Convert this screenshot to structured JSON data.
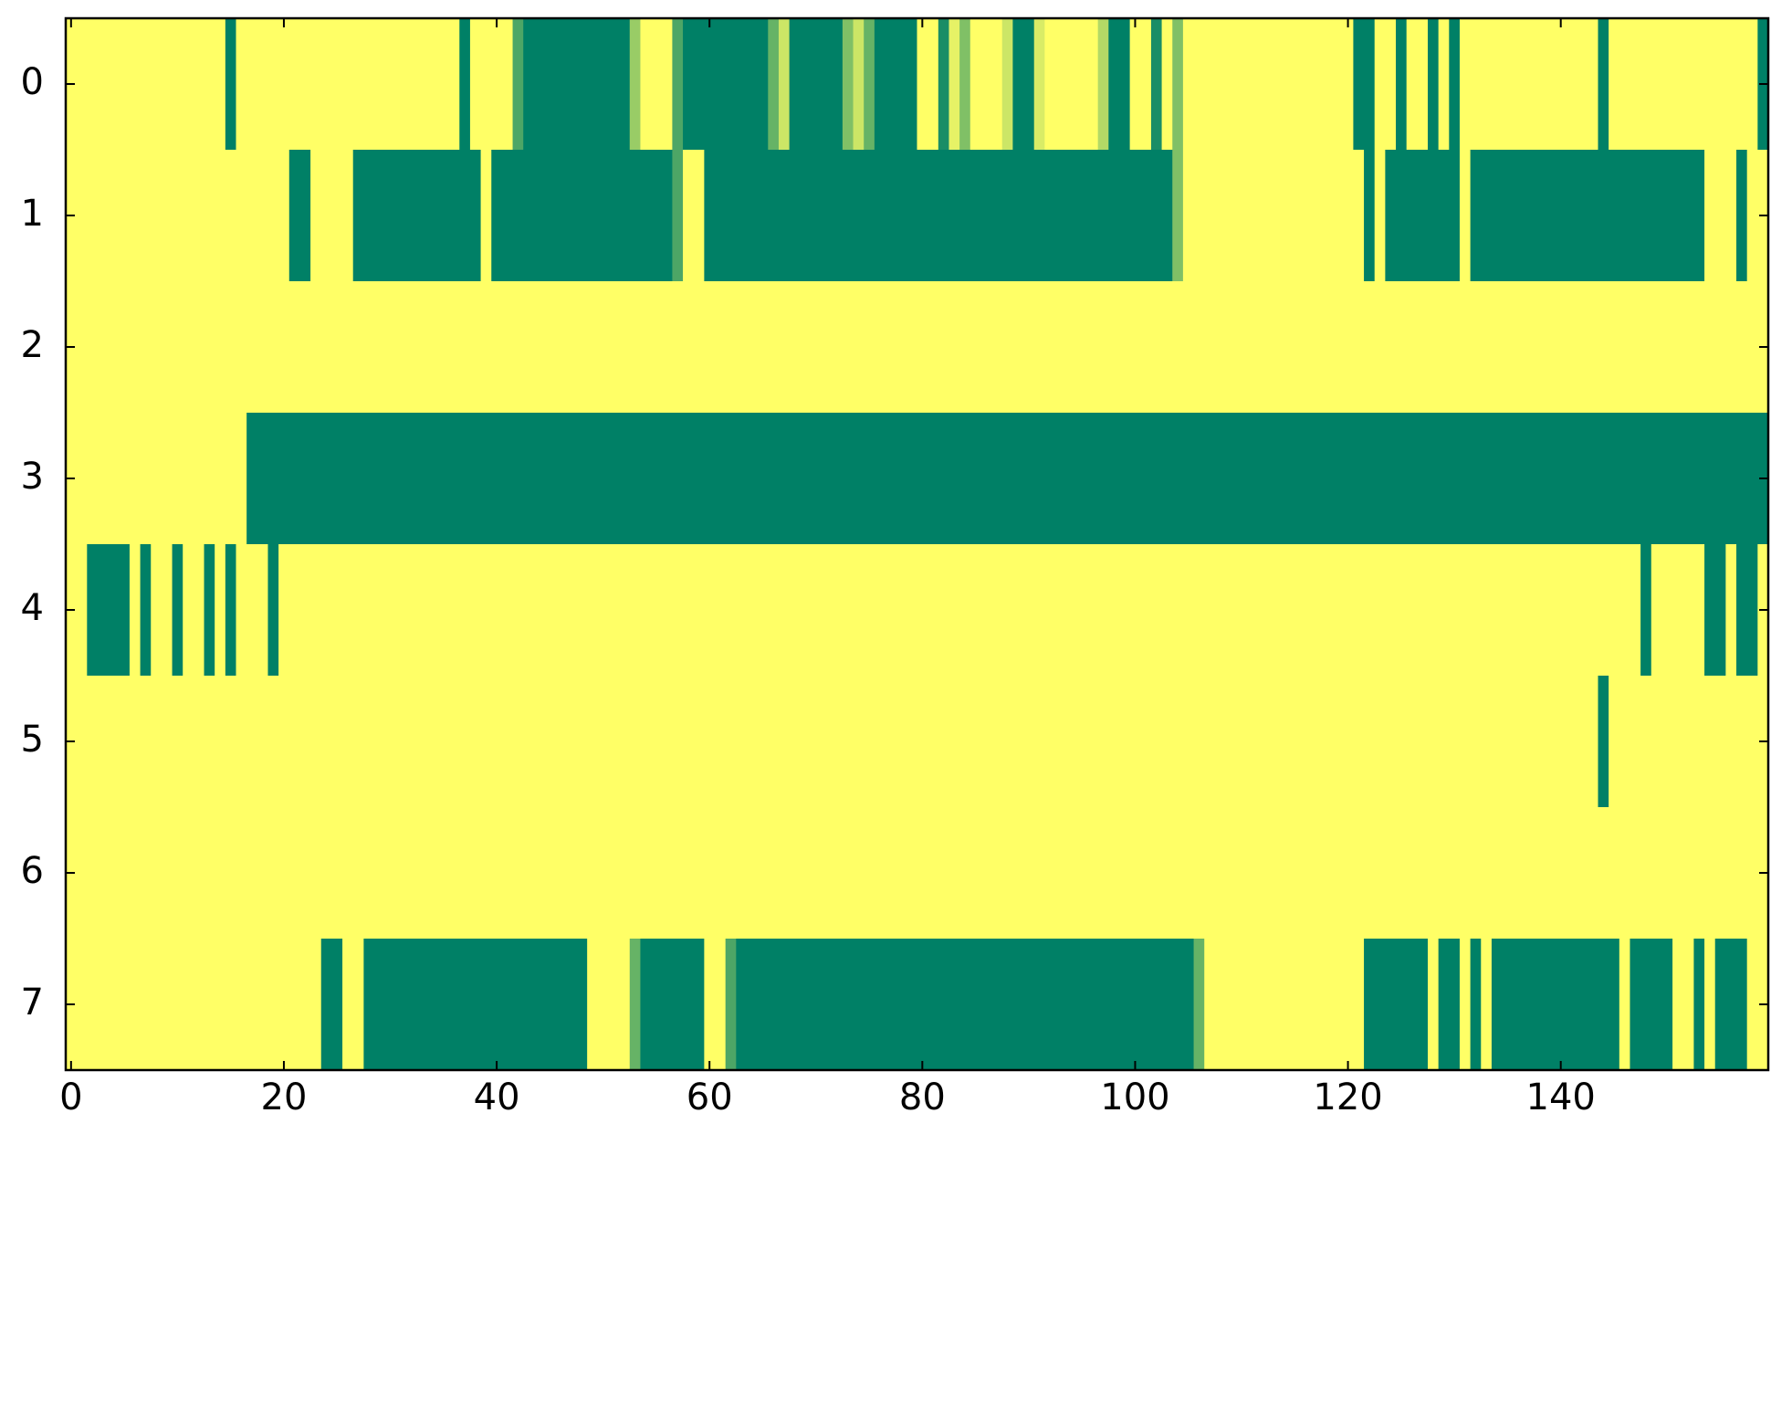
{
  "chart_data": {
    "type": "heatmap",
    "colorscale": [
      "#ffff66",
      "#008066"
    ],
    "xlim": [
      -0.5,
      159.5
    ],
    "ylim": [
      7.5,
      -0.5
    ],
    "xticks": [
      0,
      20,
      40,
      60,
      80,
      100,
      120,
      140
    ],
    "yticks": [
      0,
      1,
      2,
      3,
      4,
      5,
      6,
      7
    ],
    "z": [
      [
        0,
        0,
        0,
        0,
        0,
        0,
        0,
        0,
        0,
        0,
        0,
        0,
        0,
        0,
        0,
        1,
        0,
        0,
        0,
        0,
        0,
        0,
        0,
        0,
        0,
        0,
        0,
        0,
        0,
        0,
        0,
        0,
        0,
        0,
        0,
        0,
        0,
        1,
        0,
        0,
        0,
        0,
        0.7,
        1,
        1,
        1,
        1,
        1,
        1,
        1,
        1,
        1,
        1,
        0.4,
        0,
        0,
        0,
        0.7,
        1,
        1,
        1,
        1,
        1,
        1,
        1,
        1,
        0.6,
        0.2,
        1,
        1,
        1,
        1,
        1,
        0.5,
        0.2,
        0.6,
        1,
        1,
        1,
        1,
        0,
        0,
        0.9,
        0.1,
        0.5,
        0,
        0,
        0,
        0.2,
        1,
        1,
        0.15,
        0,
        0,
        0,
        0,
        0,
        0.3,
        1,
        1,
        0,
        0,
        0.9,
        0,
        0.5,
        0,
        0,
        0,
        0,
        0,
        0,
        0,
        0,
        0,
        0,
        0,
        0,
        0,
        0,
        0,
        0,
        1,
        1,
        0,
        0,
        1,
        0,
        0,
        1,
        0,
        1,
        0,
        0,
        0,
        0,
        0,
        0,
        0,
        0,
        0,
        0,
        0,
        0,
        0,
        1,
        0,
        0,
        0,
        0,
        0,
        0,
        0,
        0,
        0,
        0,
        0,
        0,
        0,
        0,
        1
      ],
      [
        0,
        0,
        0,
        0,
        0,
        0,
        0,
        0,
        0,
        0,
        0,
        0,
        0,
        0,
        0,
        0,
        0,
        0,
        0,
        0,
        0,
        1,
        1,
        0,
        0,
        0,
        0,
        1,
        1,
        1,
        1,
        1,
        1,
        1,
        1,
        1,
        1,
        1,
        1,
        0,
        1,
        1,
        1,
        1,
        1,
        1,
        1,
        1,
        1,
        1,
        1,
        1,
        1,
        1,
        1,
        1,
        1,
        0.7,
        0,
        0,
        1,
        1,
        1,
        1,
        1,
        1,
        1,
        1,
        1,
        1,
        1,
        1,
        1,
        1,
        1,
        1,
        1,
        1,
        1,
        1,
        1,
        1,
        1,
        1,
        1,
        1,
        1,
        1,
        1,
        1,
        1,
        1,
        1,
        1,
        1,
        1,
        1,
        1,
        1,
        1,
        1,
        1,
        1,
        1,
        0.5,
        0,
        0,
        0,
        0,
        0,
        0,
        0,
        0,
        0,
        0,
        0,
        0,
        0,
        0,
        0,
        0,
        0,
        1,
        0,
        1,
        1,
        1,
        1,
        1,
        1,
        1,
        0,
        1,
        1,
        1,
        1,
        1,
        1,
        1,
        1,
        1,
        1,
        1,
        1,
        1,
        1,
        1,
        1,
        1,
        1,
        1,
        1,
        1,
        1,
        0,
        0,
        0,
        1,
        0,
        0
      ],
      [
        0,
        0,
        0,
        0,
        0,
        0,
        0,
        0,
        0,
        0,
        0,
        0,
        0,
        0,
        0,
        0,
        0,
        0,
        0,
        0,
        0,
        0,
        0,
        0,
        0,
        0,
        0,
        0,
        0,
        0,
        0,
        0,
        0,
        0,
        0,
        0,
        0,
        0,
        0,
        0,
        0,
        0,
        0,
        0,
        0,
        0,
        0,
        0,
        0,
        0,
        0,
        0,
        0,
        0,
        0,
        0,
        0,
        0,
        0,
        0,
        0,
        0,
        0,
        0,
        0,
        0,
        0,
        0,
        0,
        0,
        0,
        0,
        0,
        0,
        0,
        0,
        0,
        0,
        0,
        0,
        0,
        0,
        0,
        0,
        0,
        0,
        0,
        0,
        0,
        0,
        0,
        0,
        0,
        0,
        0,
        0,
        0,
        0,
        0,
        0,
        0,
        0,
        0,
        0,
        0,
        0,
        0,
        0,
        0,
        0,
        0,
        0,
        0,
        0,
        0,
        0,
        0,
        0,
        0,
        0,
        0,
        0,
        0,
        0,
        0,
        0,
        0,
        0,
        0,
        0,
        0,
        0,
        0,
        0,
        0,
        0,
        0,
        0,
        0,
        0,
        0,
        0,
        0,
        0,
        0,
        0,
        0,
        0,
        0,
        0,
        0,
        0,
        0,
        0,
        0,
        0,
        0,
        0,
        0,
        0
      ],
      [
        0,
        0,
        0,
        0,
        0,
        0,
        0,
        0,
        0,
        0,
        0,
        0,
        0,
        0,
        0,
        0,
        0,
        1,
        1,
        1,
        1,
        1,
        1,
        1,
        1,
        1,
        1,
        1,
        1,
        1,
        1,
        1,
        1,
        1,
        1,
        1,
        1,
        1,
        1,
        1,
        1,
        1,
        1,
        1,
        1,
        1,
        1,
        1,
        1,
        1,
        1,
        1,
        1,
        1,
        1,
        1,
        1,
        1,
        1,
        1,
        1,
        1,
        1,
        1,
        1,
        1,
        1,
        1,
        1,
        1,
        1,
        1,
        1,
        1,
        1,
        1,
        1,
        1,
        1,
        1,
        1,
        1,
        1,
        1,
        1,
        1,
        1,
        1,
        1,
        1,
        1,
        1,
        1,
        1,
        1,
        1,
        1,
        1,
        1,
        1,
        1,
        1,
        1,
        1,
        1,
        1,
        1,
        1,
        1,
        1,
        1,
        1,
        1,
        1,
        1,
        1,
        1,
        1,
        1,
        1,
        1,
        1,
        1,
        1,
        1,
        1,
        1,
        1,
        1,
        1,
        1,
        1,
        1,
        1,
        1,
        1,
        1,
        1,
        1,
        1,
        1,
        1,
        1,
        1,
        1,
        1,
        1,
        1,
        1,
        1,
        1,
        1,
        1,
        1,
        1,
        1,
        1,
        1,
        1,
        1
      ],
      [
        0,
        0,
        1,
        1,
        1,
        1,
        0,
        1,
        0,
        0,
        1,
        0,
        0,
        1,
        0,
        1,
        0,
        0,
        0,
        1,
        0,
        0,
        0,
        0,
        0,
        0,
        0,
        0,
        0,
        0,
        0,
        0,
        0,
        0,
        0,
        0,
        0,
        0,
        0,
        0,
        0,
        0,
        0,
        0,
        0,
        0,
        0,
        0,
        0,
        0,
        0,
        0,
        0,
        0,
        0,
        0,
        0,
        0,
        0,
        0,
        0,
        0,
        0,
        0,
        0,
        0,
        0,
        0,
        0,
        0,
        0,
        0,
        0,
        0,
        0,
        0,
        0,
        0,
        0,
        0,
        0,
        0,
        0,
        0,
        0,
        0,
        0,
        0,
        0,
        0,
        0,
        0,
        0,
        0,
        0,
        0,
        0,
        0,
        0,
        0,
        0,
        0,
        0,
        0,
        0,
        0,
        0,
        0,
        0,
        0,
        0,
        0,
        0,
        0,
        0,
        0,
        0,
        0,
        0,
        0,
        0,
        0,
        0,
        0,
        0,
        0,
        0,
        0,
        0,
        0,
        0,
        0,
        0,
        0,
        0,
        0,
        0,
        0,
        0,
        0,
        0,
        0,
        0,
        0,
        0,
        0,
        0,
        0,
        1,
        0,
        0,
        0,
        0,
        0,
        1,
        1,
        0,
        1,
        1,
        0
      ],
      [
        0,
        0,
        0,
        0,
        0,
        0,
        0,
        0,
        0,
        0,
        0,
        0,
        0,
        0,
        0,
        0,
        0,
        0,
        0,
        0,
        0,
        0,
        0,
        0,
        0,
        0,
        0,
        0,
        0,
        0,
        0,
        0,
        0,
        0,
        0,
        0,
        0,
        0,
        0,
        0,
        0,
        0,
        0,
        0,
        0,
        0,
        0,
        0,
        0,
        0,
        0,
        0,
        0,
        0,
        0,
        0,
        0,
        0,
        0,
        0,
        0,
        0,
        0,
        0,
        0,
        0,
        0,
        0,
        0,
        0,
        0,
        0,
        0,
        0,
        0,
        0,
        0,
        0,
        0,
        0,
        0,
        0,
        0,
        0,
        0,
        0,
        0,
        0,
        0,
        0,
        0,
        0,
        0,
        0,
        0,
        0,
        0,
        0,
        0,
        0,
        0,
        0,
        0,
        0,
        0,
        0,
        0,
        0,
        0,
        0,
        0,
        0,
        0,
        0,
        0,
        0,
        0,
        0,
        0,
        0,
        0,
        0,
        0,
        0,
        0,
        0,
        0,
        0,
        0,
        0,
        0,
        0,
        0,
        0,
        0,
        0,
        0,
        0,
        0,
        0,
        0,
        0,
        0,
        0,
        1,
        0,
        0,
        0,
        0,
        0,
        0,
        0,
        0,
        0,
        0,
        0,
        0,
        0,
        0,
        0
      ],
      [
        0,
        0,
        0,
        0,
        0,
        0,
        0,
        0,
        0,
        0,
        0,
        0,
        0,
        0,
        0,
        0,
        0,
        0,
        0,
        0,
        0,
        0,
        0,
        0,
        0,
        0,
        0,
        0,
        0,
        0,
        0,
        0,
        0,
        0,
        0,
        0,
        0,
        0,
        0,
        0,
        0,
        0,
        0,
        0,
        0,
        0,
        0,
        0,
        0,
        0,
        0,
        0,
        0,
        0,
        0,
        0,
        0,
        0,
        0,
        0,
        0,
        0,
        0,
        0,
        0,
        0,
        0,
        0,
        0,
        0,
        0,
        0,
        0,
        0,
        0,
        0,
        0,
        0,
        0,
        0,
        0,
        0,
        0,
        0,
        0,
        0,
        0,
        0,
        0,
        0,
        0,
        0,
        0,
        0,
        0,
        0,
        0,
        0,
        0,
        0,
        0,
        0,
        0,
        0,
        0,
        0,
        0,
        0,
        0,
        0,
        0,
        0,
        0,
        0,
        0,
        0,
        0,
        0,
        0,
        0,
        0,
        0,
        0,
        0,
        0,
        0,
        0,
        0,
        0,
        0,
        0,
        0,
        0,
        0,
        0,
        0,
        0,
        0,
        0,
        0,
        0,
        0,
        0,
        0,
        0,
        0,
        0,
        0,
        0,
        0,
        0,
        0,
        0,
        0,
        0,
        0,
        0,
        0,
        0,
        0
      ],
      [
        0,
        0,
        0,
        0,
        0,
        0,
        0,
        0,
        0,
        0,
        0,
        0,
        0,
        0,
        0,
        0,
        0,
        0,
        0,
        0,
        0,
        0,
        0,
        0,
        1,
        1,
        0,
        0,
        1,
        1,
        1,
        1,
        1,
        1,
        1,
        1,
        1,
        1,
        1,
        1,
        1,
        1,
        1,
        1,
        1,
        1,
        1,
        1,
        1,
        0,
        0,
        0,
        0,
        0.6,
        1,
        1,
        1,
        1,
        1,
        1,
        0,
        0,
        0.7,
        1,
        1,
        1,
        1,
        1,
        1,
        1,
        1,
        1,
        1,
        1,
        1,
        1,
        1,
        1,
        1,
        1,
        1,
        1,
        1,
        1,
        1,
        1,
        1,
        1,
        1,
        1,
        1,
        1,
        1,
        1,
        1,
        1,
        1,
        1,
        1,
        1,
        1,
        1,
        1,
        1,
        1,
        1,
        0.6,
        0,
        0,
        0,
        0,
        0,
        0,
        0,
        0,
        0,
        0,
        0,
        0,
        0,
        0,
        0,
        1,
        1,
        1,
        1,
        1,
        1,
        0,
        1,
        1,
        0,
        1,
        0,
        1,
        1,
        1,
        1,
        1,
        1,
        1,
        1,
        1,
        1,
        1,
        1,
        0,
        1,
        1,
        1,
        1,
        0,
        0,
        1,
        0,
        1,
        1,
        1,
        0,
        0
      ]
    ]
  }
}
